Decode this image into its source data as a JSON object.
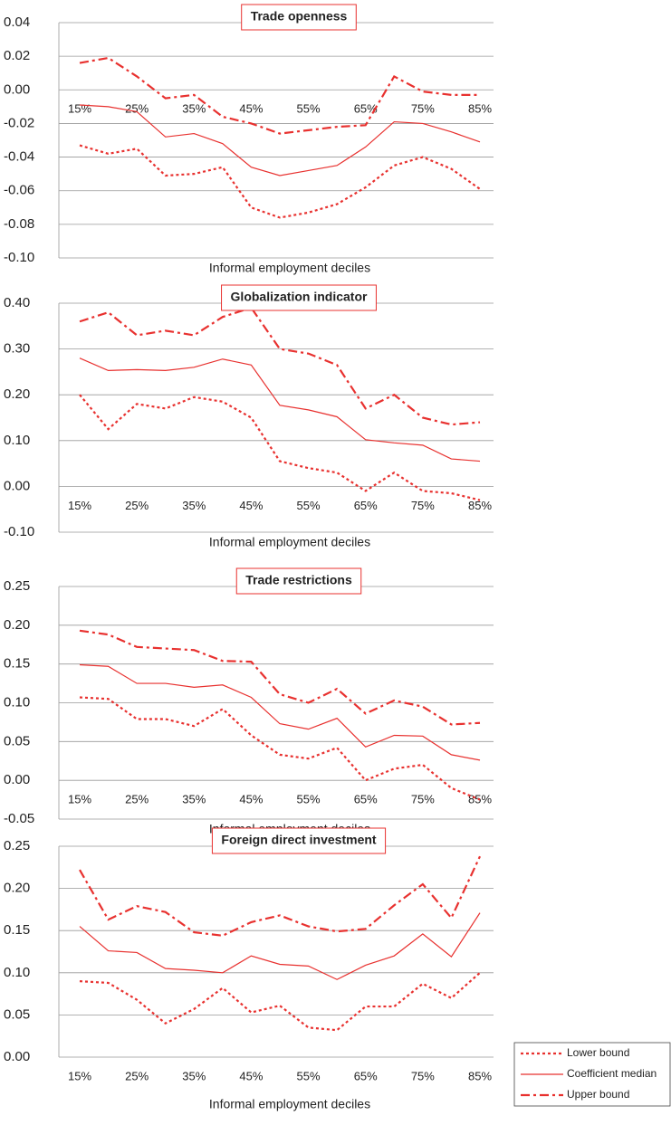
{
  "chart_data": [
    {
      "type": "line",
      "title": "Trade openness",
      "xlabel": "Informal employment deciles",
      "categories": [
        "15%",
        null,
        "25%",
        null,
        "35%",
        null,
        "45%",
        null,
        "55%",
        null,
        "65%",
        null,
        "75%",
        null,
        "85%"
      ],
      "ylim": [
        -0.1,
        0.04
      ],
      "yticks": [
        {
          "value": 0.04,
          "label": "0.04"
        },
        {
          "value": 0.02,
          "label": "0.02"
        },
        {
          "value": 0,
          "label": "0.00"
        },
        {
          "value": -0.02,
          "label": "-0.02"
        },
        {
          "value": -0.04,
          "label": "-0.04"
        },
        {
          "value": -0.06,
          "label": "-0.06"
        },
        {
          "value": -0.08,
          "label": "-0.08"
        },
        {
          "value": -0.1,
          "label": "-0.10"
        }
      ],
      "grid": true,
      "series": [
        {
          "values": [
            -0.033,
            -0.038,
            -0.035,
            -0.051,
            -0.05,
            -0.046,
            -0.07,
            -0.076,
            -0.073,
            -0.068,
            -0.058,
            -0.045,
            -0.04,
            -0.047,
            -0.059
          ]
        },
        {
          "values": [
            -0.009,
            -0.01,
            -0.013,
            -0.028,
            -0.026,
            -0.032,
            -0.046,
            -0.051,
            -0.048,
            -0.045,
            -0.034,
            -0.019,
            -0.02,
            -0.025,
            -0.031
          ]
        },
        {
          "values": [
            0.016,
            0.019,
            0.008,
            -0.005,
            -0.003,
            -0.016,
            -0.02,
            -0.026,
            -0.024,
            -0.022,
            -0.021,
            0.008,
            -0.001,
            -0.003,
            -0.003
          ]
        }
      ]
    },
    {
      "type": "line",
      "title": "Globalization indicator",
      "xlabel": "Informal employment deciles",
      "categories": [
        "15%",
        null,
        "25%",
        null,
        "35%",
        null,
        "45%",
        null,
        "55%",
        null,
        "65%",
        null,
        "75%",
        null,
        "85%"
      ],
      "ylim": [
        -0.1,
        0.4
      ],
      "yticks": [
        {
          "value": 0.4,
          "label": "0.40"
        },
        {
          "value": 0.3,
          "label": "0.30"
        },
        {
          "value": 0.2,
          "label": "0.20"
        },
        {
          "value": 0.1,
          "label": "0.10"
        },
        {
          "value": 0,
          "label": "0.00"
        },
        {
          "value": -0.1,
          "label": "-0.10"
        }
      ],
      "grid": true,
      "series": [
        {
          "values": [
            0.2,
            0.125,
            0.18,
            0.17,
            0.195,
            0.185,
            0.15,
            0.055,
            0.04,
            0.03,
            -0.01,
            0.03,
            -0.01,
            -0.015,
            -0.03
          ]
        },
        {
          "values": [
            0.28,
            0.253,
            0.255,
            0.253,
            0.26,
            0.278,
            0.265,
            0.177,
            0.167,
            0.152,
            0.102,
            0.095,
            0.09,
            0.06,
            0.055
          ]
        },
        {
          "values": [
            0.36,
            0.38,
            0.33,
            0.34,
            0.33,
            0.37,
            0.39,
            0.3,
            0.29,
            0.265,
            0.17,
            0.2,
            0.15,
            0.135,
            0.14
          ]
        }
      ]
    },
    {
      "type": "line",
      "title": "Trade restrictions",
      "xlabel": "Informal employment deciles",
      "categories": [
        "15%",
        null,
        "25%",
        null,
        "35%",
        null,
        "45%",
        null,
        "55%",
        null,
        "65%",
        null,
        "75%",
        null,
        "85%"
      ],
      "ylim": [
        -0.05,
        0.25
      ],
      "yticks": [
        {
          "value": 0.25,
          "label": "0.25"
        },
        {
          "value": 0.2,
          "label": "0.20"
        },
        {
          "value": 0.15,
          "label": "0.15"
        },
        {
          "value": 0.1,
          "label": "0.10"
        },
        {
          "value": 0.05,
          "label": "0.05"
        },
        {
          "value": 0,
          "label": "0.00"
        },
        {
          "value": -0.05,
          "label": "-0.05"
        }
      ],
      "grid": true,
      "series": [
        {
          "values": [
            0.107,
            0.105,
            0.079,
            0.079,
            0.07,
            0.092,
            0.058,
            0.033,
            0.028,
            0.042,
            0.0,
            0.015,
            0.02,
            -0.01,
            -0.025
          ]
        },
        {
          "values": [
            0.149,
            0.147,
            0.125,
            0.125,
            0.12,
            0.123,
            0.107,
            0.073,
            0.066,
            0.08,
            0.043,
            0.058,
            0.057,
            0.033,
            0.026
          ]
        },
        {
          "values": [
            0.193,
            0.188,
            0.172,
            0.17,
            0.168,
            0.154,
            0.153,
            0.111,
            0.1,
            0.118,
            0.086,
            0.103,
            0.095,
            0.072,
            0.074
          ]
        }
      ]
    },
    {
      "type": "line",
      "title": "Foreign direct investment",
      "xlabel": "Informal employment deciles",
      "categories": [
        "15%",
        null,
        "25%",
        null,
        "35%",
        null,
        "45%",
        null,
        "55%",
        null,
        "65%",
        null,
        "75%",
        null,
        "85%"
      ],
      "ylim": [
        0,
        0.25
      ],
      "yticks": [
        {
          "value": 0.25,
          "label": "0.25"
        },
        {
          "value": 0.2,
          "label": "0.20"
        },
        {
          "value": 0.15,
          "label": "0.15"
        },
        {
          "value": 0.1,
          "label": "0.10"
        },
        {
          "value": 0.05,
          "label": "0.05"
        },
        {
          "value": 0,
          "label": "0.00"
        }
      ],
      "grid": true,
      "series": [
        {
          "values": [
            0.09,
            0.088,
            0.068,
            0.04,
            0.057,
            0.082,
            0.053,
            0.061,
            0.035,
            0.032,
            0.06,
            0.06,
            0.087,
            0.07,
            0.1
          ]
        },
        {
          "values": [
            0.155,
            0.126,
            0.124,
            0.105,
            0.103,
            0.1,
            0.12,
            0.11,
            0.108,
            0.092,
            0.109,
            0.12,
            0.146,
            0.119,
            0.171
          ]
        },
        {
          "values": [
            0.222,
            0.163,
            0.179,
            0.172,
            0.148,
            0.144,
            0.16,
            0.168,
            0.155,
            0.149,
            0.152,
            0.18,
            0.205,
            0.165,
            0.238
          ]
        }
      ]
    }
  ],
  "legend": {
    "position": "lower right",
    "entries": [
      {
        "name": "Lower bound",
        "color": "#e8312f",
        "style": "dotted"
      },
      {
        "name": "Coefficient median",
        "color": "#e8312f",
        "style": "solid"
      },
      {
        "name": "Upper bound",
        "color": "#e8312f",
        "style": "dashdot"
      }
    ]
  }
}
